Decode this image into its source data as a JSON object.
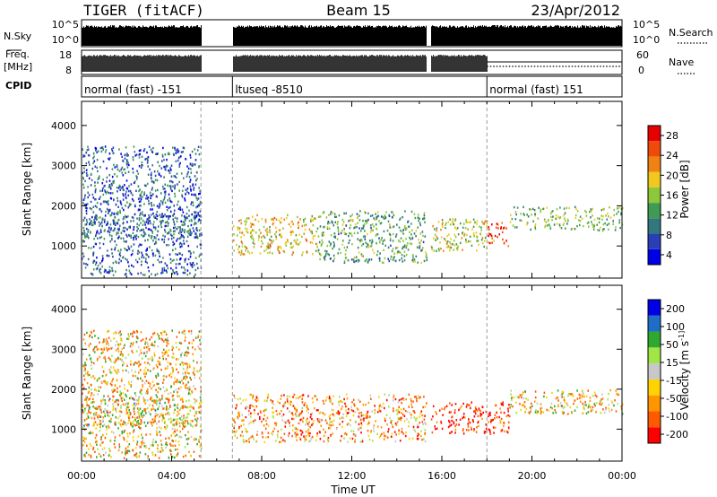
{
  "header": {
    "title_left": "TIGER (fitACF)",
    "title_center": "Beam 15",
    "title_right": "23/Apr/2012"
  },
  "panels": {
    "sky": {
      "left_label": "N.Sky",
      "right_label": "N.Search",
      "left_ticks": [
        "10^5",
        "10^0"
      ],
      "right_ticks": [
        "10^5",
        "10^0"
      ]
    },
    "freq": {
      "left_label_1": "Freq.",
      "left_label_2": "[MHz]",
      "right_label": "Nave",
      "left_ticks": [
        "18",
        "8"
      ],
      "right_ticks": [
        "60",
        "0"
      ]
    },
    "cpid": {
      "label": "CPID",
      "segments": [
        {
          "text": "normal (fast) -151",
          "start_h": 0
        },
        {
          "text": "ltuseq -8510",
          "start_h": 6.7
        },
        {
          "text": "normal (fast) 151",
          "start_h": 18.0
        }
      ]
    }
  },
  "x_axis": {
    "label": "Time UT",
    "ticks": [
      "00:00",
      "04:00",
      "08:00",
      "12:00",
      "16:00",
      "20:00",
      "00:00"
    ],
    "tick_values": [
      0,
      4,
      8,
      12,
      16,
      20,
      24
    ]
  },
  "colors": {
    "power_scale": [
      "#0000e6",
      "#2a3fb5",
      "#33777e",
      "#3f9a52",
      "#8cc83a",
      "#f0c81e",
      "#f08214",
      "#f04a0a",
      "#e60000"
    ],
    "velocity_scale": [
      "#ff0000",
      "#ff5a00",
      "#ff9600",
      "#ffd200",
      "#c8c8c8",
      "#a0e646",
      "#2fa82f",
      "#1e6ec8",
      "#0000e6"
    ]
  },
  "colorbars": {
    "power": {
      "label": "Power [dB]",
      "ticks": [
        "28",
        "24",
        "20",
        "16",
        "12",
        "8",
        "4"
      ]
    },
    "velocity": {
      "label": "Velocity [m s^-1]",
      "ticks": [
        "200",
        "100",
        "50",
        "15",
        "-15",
        "-50",
        "-100",
        "-200"
      ]
    }
  },
  "chart_data": [
    {
      "type": "heatmap",
      "title": "Power",
      "xlabel": "Time UT",
      "ylabel": "Slant Range [km]",
      "xlim": [
        0,
        24
      ],
      "ylim": [
        200,
        4600
      ],
      "y_ticks": [
        1000,
        2000,
        3000,
        4000
      ],
      "colorbar": {
        "label": "Power [dB]",
        "ticks": [
          28,
          24,
          20,
          16,
          12,
          8,
          4
        ]
      },
      "data_gaps_h": [
        [
          5.3,
          6.7
        ],
        [
          15.3,
          15.5
        ]
      ],
      "regions": [
        {
          "t": [
            0.0,
            5.3
          ],
          "r": [
            300,
            3500
          ],
          "dominant_db": 6
        },
        {
          "t": [
            0.0,
            5.3
          ],
          "r": [
            1200,
            1800
          ],
          "dominant_db": 8
        },
        {
          "t": [
            6.7,
            10.5
          ],
          "r": [
            800,
            1800
          ],
          "dominant_db": 20
        },
        {
          "t": [
            10.5,
            15.3
          ],
          "r": [
            600,
            1900
          ],
          "dominant_db": 12
        },
        {
          "t": [
            15.5,
            18.0
          ],
          "r": [
            900,
            1700
          ],
          "dominant_db": 18
        },
        {
          "t": [
            18.0,
            19.0
          ],
          "r": [
            1000,
            1600
          ],
          "dominant_db": 28
        },
        {
          "t": [
            19.0,
            24.0
          ],
          "r": [
            1400,
            2000
          ],
          "dominant_db": 14
        }
      ]
    },
    {
      "type": "heatmap",
      "title": "Velocity",
      "xlabel": "Time UT",
      "ylabel": "Slant Range [km]",
      "xlim": [
        0,
        24
      ],
      "ylim": [
        200,
        4600
      ],
      "y_ticks": [
        1000,
        2000,
        3000,
        4000
      ],
      "colorbar": {
        "label": "Velocity [m s^-1]",
        "ticks": [
          200,
          100,
          50,
          15,
          -15,
          -50,
          -100,
          -200
        ]
      },
      "data_gaps_h": [
        [
          5.3,
          6.7
        ],
        [
          15.3,
          15.5
        ]
      ],
      "regions": [
        {
          "t": [
            0.0,
            5.3
          ],
          "r": [
            1100,
            1800
          ],
          "dominant_ms": 0
        },
        {
          "t": [
            0.0,
            5.3
          ],
          "r": [
            300,
            3500
          ],
          "dominant_ms": -50
        },
        {
          "t": [
            6.7,
            15.3
          ],
          "r": [
            700,
            1900
          ],
          "dominant_ms": -100
        },
        {
          "t": [
            15.5,
            19.0
          ],
          "r": [
            900,
            1700
          ],
          "dominant_ms": -200
        },
        {
          "t": [
            19.0,
            24.0
          ],
          "r": [
            1400,
            2000
          ],
          "dominant_ms": -50
        }
      ]
    }
  ]
}
